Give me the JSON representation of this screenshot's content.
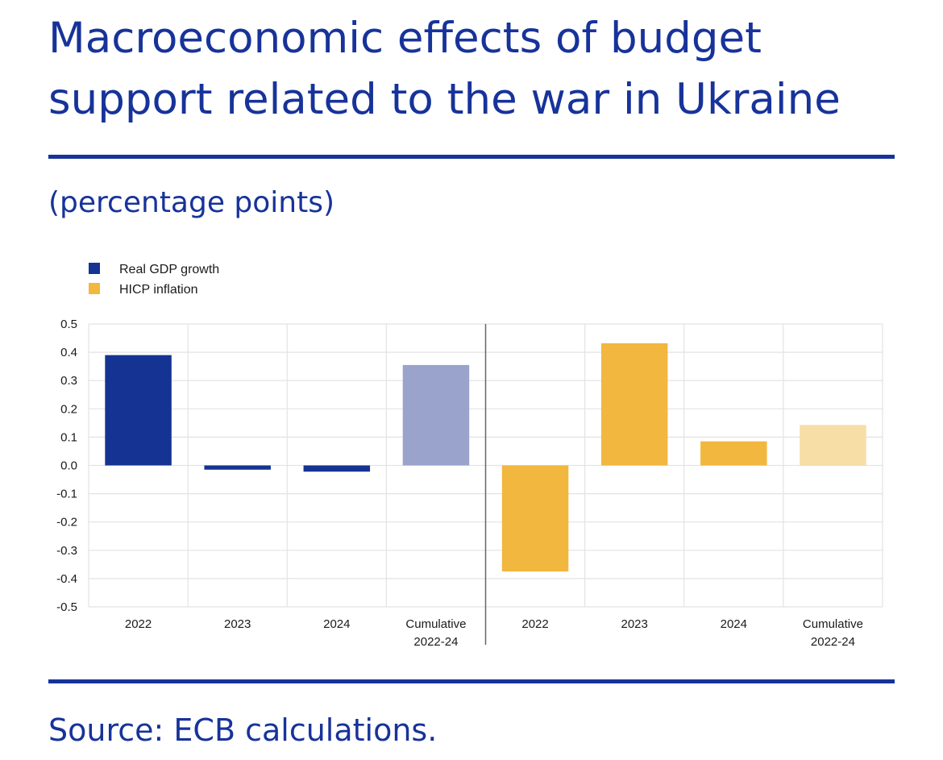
{
  "title": "Macroeconomic effects of budget support related to the war in Ukraine",
  "subtitle": "(percentage points)",
  "source": "Source: ECB calculations.",
  "colors": {
    "title": "#17339a",
    "gdp": "#143393",
    "gdp_cumulative": "#9aa3cc",
    "hicp": "#f2b73e",
    "hicp_cumulative": "#f6dea6",
    "grid": "#e3e3e3",
    "separator": "#666666"
  },
  "chart_data": {
    "type": "bar",
    "title": "Macroeconomic effects of budget support related to the war in Ukraine",
    "ylabel": "percentage points",
    "ylim": [
      -0.5,
      0.5
    ],
    "yticks": [
      "0.5",
      "0.4",
      "0.3",
      "0.2",
      "0.1",
      "0.0",
      "-0.1",
      "-0.2",
      "-0.3",
      "-0.4",
      "-0.5"
    ],
    "ytick_values": [
      0.5,
      0.4,
      0.3,
      0.2,
      0.1,
      0.0,
      -0.1,
      -0.2,
      -0.3,
      -0.4,
      -0.5
    ],
    "legend": [
      {
        "name": "Real GDP growth",
        "color": "#143393"
      },
      {
        "name": "HICP inflation",
        "color": "#f2b73e"
      }
    ],
    "categories": [
      {
        "label": "2022",
        "label2": "",
        "series": "Real GDP growth",
        "value": 0.39,
        "color": "#143393"
      },
      {
        "label": "2023",
        "label2": "",
        "series": "Real GDP growth",
        "value": -0.015,
        "color": "#143393"
      },
      {
        "label": "2024",
        "label2": "",
        "series": "Real GDP growth",
        "value": -0.022,
        "color": "#143393"
      },
      {
        "label": "Cumulative",
        "label2": "2022-24",
        "series": "Real GDP growth",
        "value": 0.355,
        "color": "#9aa3cc"
      },
      {
        "label": "2022",
        "label2": "",
        "series": "HICP inflation",
        "value": -0.375,
        "color": "#f2b73e"
      },
      {
        "label": "2023",
        "label2": "",
        "series": "HICP inflation",
        "value": 0.432,
        "color": "#f2b73e"
      },
      {
        "label": "2024",
        "label2": "",
        "series": "HICP inflation",
        "value": 0.085,
        "color": "#f2b73e"
      },
      {
        "label": "Cumulative",
        "label2": "2022-24",
        "series": "HICP inflation",
        "value": 0.143,
        "color": "#f6dea6"
      }
    ]
  }
}
